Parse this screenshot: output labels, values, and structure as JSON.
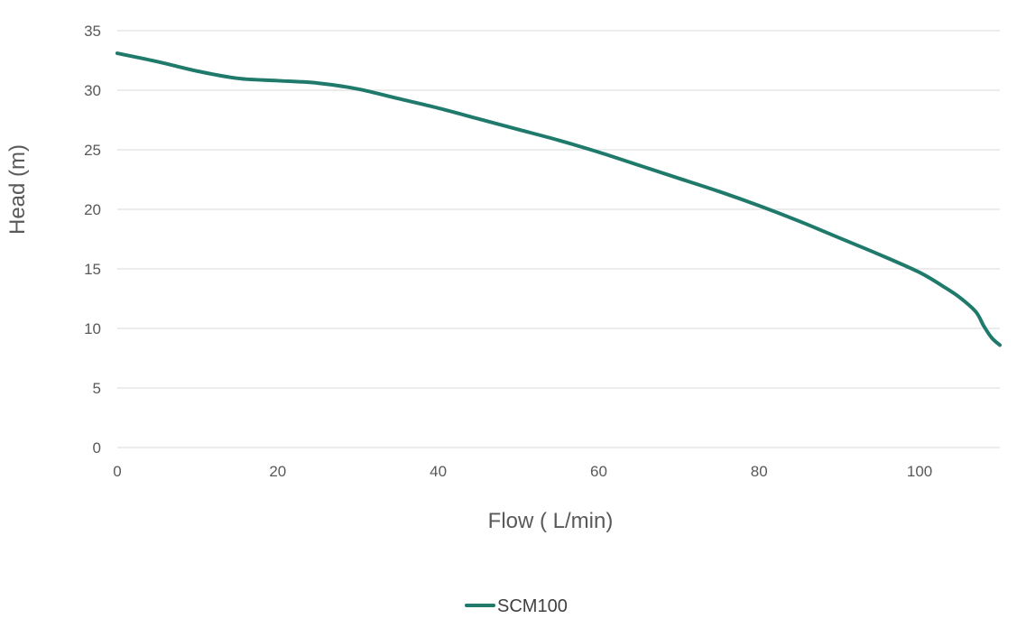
{
  "chart_data": {
    "type": "line",
    "title": "",
    "xlabel": "Flow ( L/min)",
    "ylabel": "Head (m)",
    "xlim": [
      0,
      110
    ],
    "ylim": [
      0,
      35
    ],
    "x_ticks": [
      0,
      20,
      40,
      60,
      80,
      100
    ],
    "y_ticks": [
      0,
      5,
      10,
      15,
      20,
      25,
      30,
      35
    ],
    "grid": "horizontal",
    "legend_position": "bottom",
    "series": [
      {
        "name": "SCM100",
        "color": "#1f7a6b",
        "x": [
          0,
          5,
          10,
          15,
          20,
          25,
          30,
          35,
          40,
          45,
          50,
          55,
          60,
          65,
          70,
          75,
          80,
          85,
          90,
          95,
          100,
          103,
          105,
          107,
          108,
          109,
          110
        ],
        "y": [
          33.1,
          32.4,
          31.6,
          31.0,
          30.8,
          30.6,
          30.1,
          29.3,
          28.5,
          27.6,
          26.7,
          25.8,
          24.8,
          23.7,
          22.6,
          21.5,
          20.3,
          19.0,
          17.6,
          16.2,
          14.7,
          13.5,
          12.6,
          11.4,
          10.2,
          9.2,
          8.6
        ]
      }
    ]
  }
}
